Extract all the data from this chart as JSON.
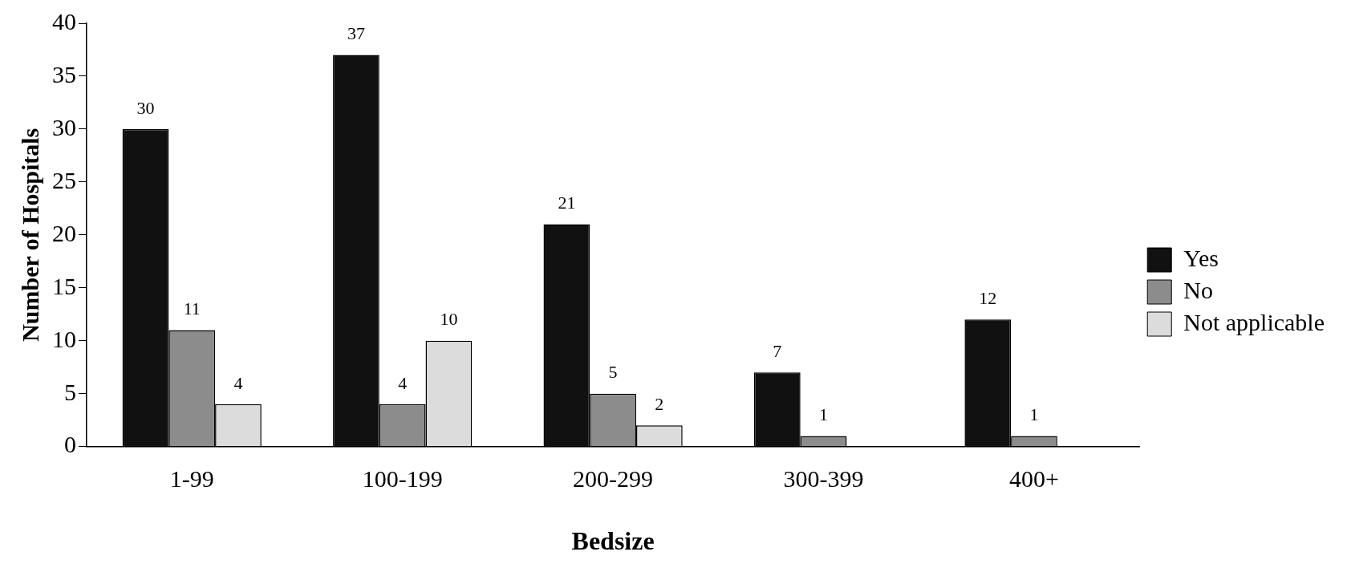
{
  "chart_data": {
    "type": "bar",
    "xlabel": "Bedsize",
    "ylabel": "Number of Hospitals",
    "categories": [
      "1-99",
      "100-199",
      "200-299",
      "300-399",
      "400+"
    ],
    "series": [
      {
        "name": "Yes",
        "color": "#111111",
        "values": [
          30,
          37,
          21,
          7,
          12
        ]
      },
      {
        "name": "No",
        "color": "#8c8c8c",
        "values": [
          11,
          4,
          5,
          1,
          1
        ]
      },
      {
        "name": "Not applicable",
        "color": "#dcdcdc",
        "values": [
          4,
          10,
          2,
          null,
          null
        ]
      }
    ],
    "ylim": [
      0,
      40
    ],
    "yticks": [
      0,
      5,
      10,
      15,
      20,
      25,
      30,
      35,
      40
    ],
    "grid": false,
    "legend": "right",
    "data_labels": true
  }
}
